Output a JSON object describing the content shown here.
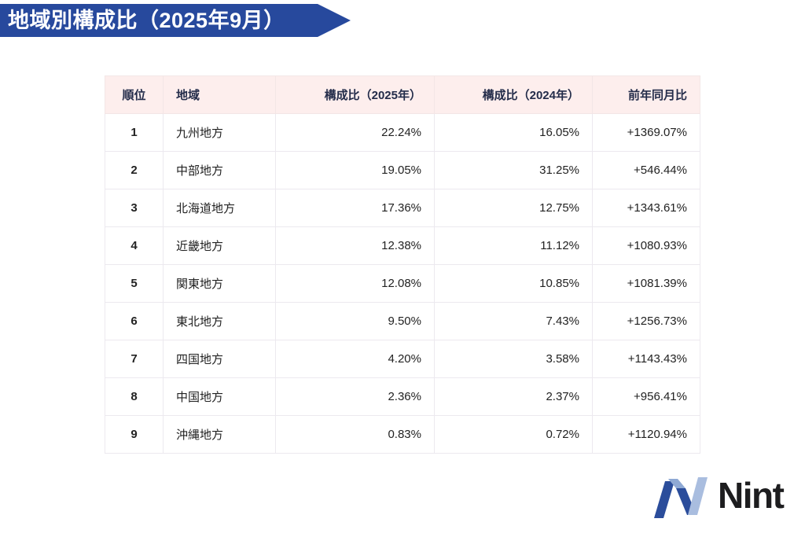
{
  "banner": {
    "title": "地域別構成比（2025年9月）"
  },
  "colors": {
    "banner_bg": "#27499d",
    "table_header_bg": "#fdeeed",
    "table_header_text": "#232c4a",
    "table_body_text": "#222222",
    "table_border": "#ece9ef",
    "logo_dark_blue": "#2b4d9b",
    "logo_light_blue": "#a2b7da",
    "logo_text_color": "#1d1d1f"
  },
  "chart_data": {
    "type": "table",
    "title": "地域別構成比（2025年9月）",
    "columns": [
      "順位",
      "地域",
      "構成比（2025年）",
      "構成比（2024年）",
      "前年同月比"
    ],
    "rows": [
      {
        "rank": "1",
        "region": "九州地方",
        "share_2025": "22.24%",
        "share_2024": "16.05%",
        "yoy": "+1369.07%"
      },
      {
        "rank": "2",
        "region": "中部地方",
        "share_2025": "19.05%",
        "share_2024": "31.25%",
        "yoy": "+546.44%"
      },
      {
        "rank": "3",
        "region": "北海道地方",
        "share_2025": "17.36%",
        "share_2024": "12.75%",
        "yoy": "+1343.61%"
      },
      {
        "rank": "4",
        "region": "近畿地方",
        "share_2025": "12.38%",
        "share_2024": "11.12%",
        "yoy": "+1080.93%"
      },
      {
        "rank": "5",
        "region": "関東地方",
        "share_2025": "12.08%",
        "share_2024": "10.85%",
        "yoy": "+1081.39%"
      },
      {
        "rank": "6",
        "region": "東北地方",
        "share_2025": "9.50%",
        "share_2024": "7.43%",
        "yoy": "+1256.73%"
      },
      {
        "rank": "7",
        "region": "四国地方",
        "share_2025": "4.20%",
        "share_2024": "3.58%",
        "yoy": "+1143.43%"
      },
      {
        "rank": "8",
        "region": "中国地方",
        "share_2025": "2.36%",
        "share_2024": "2.37%",
        "yoy": "+956.41%"
      },
      {
        "rank": "9",
        "region": "沖縄地方",
        "share_2025": "0.83%",
        "share_2024": "0.72%",
        "yoy": "+1120.94%"
      }
    ]
  },
  "logo": {
    "text": "Nint"
  }
}
